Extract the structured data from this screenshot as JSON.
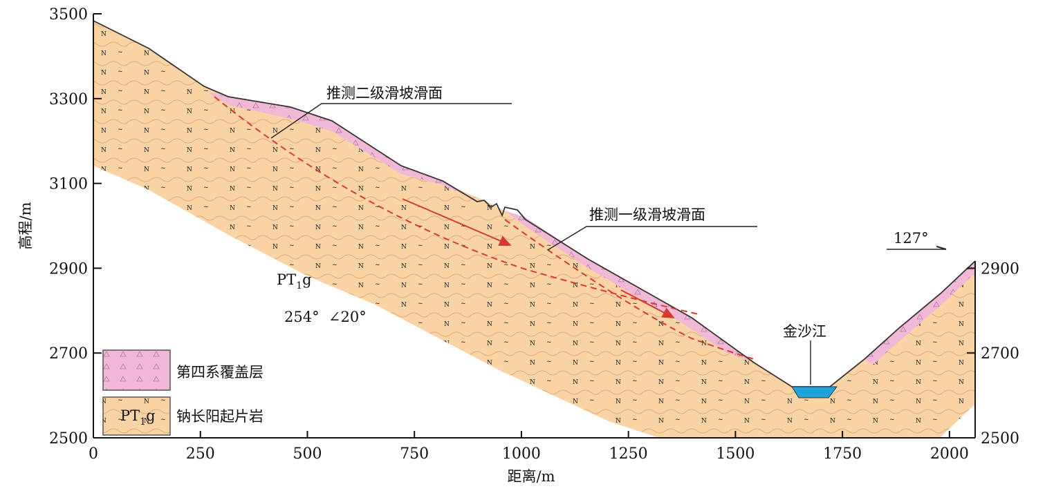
{
  "chart_data": {
    "type": "cross-section",
    "xlabel": "距离/m",
    "ylabel": "高程/m",
    "x_range": [
      0,
      2060
    ],
    "y_range": [
      2500,
      3500
    ],
    "x_ticks": [
      0,
      250,
      500,
      750,
      1000,
      1250,
      1500,
      1750,
      2000
    ],
    "y_ticks_left": [
      2500,
      2700,
      2900,
      3100,
      3300,
      3500
    ],
    "y_ticks_right": [
      2500,
      2700,
      2900
    ],
    "annotations": {
      "slip2": "推测二级滑坡滑面",
      "slip1": "推测一级滑坡滑面",
      "river": "金沙江",
      "direction": "127°",
      "attitude": "254°  ∠20°",
      "formation_main": "PT",
      "formation_sub": "1",
      "formation_tail": "g"
    },
    "legend": [
      {
        "label": "第四系覆盖层",
        "symbol": "",
        "color": "#f2b8d8"
      },
      {
        "label": "钠长阳起片岩",
        "symbol": "PT1g",
        "color": "#fbd4a6"
      }
    ],
    "colors": {
      "rock": "#fbd4a6",
      "cover": "#f2b8d8",
      "river": "#1ea3dc",
      "slip_line": "#d43a2f"
    }
  }
}
